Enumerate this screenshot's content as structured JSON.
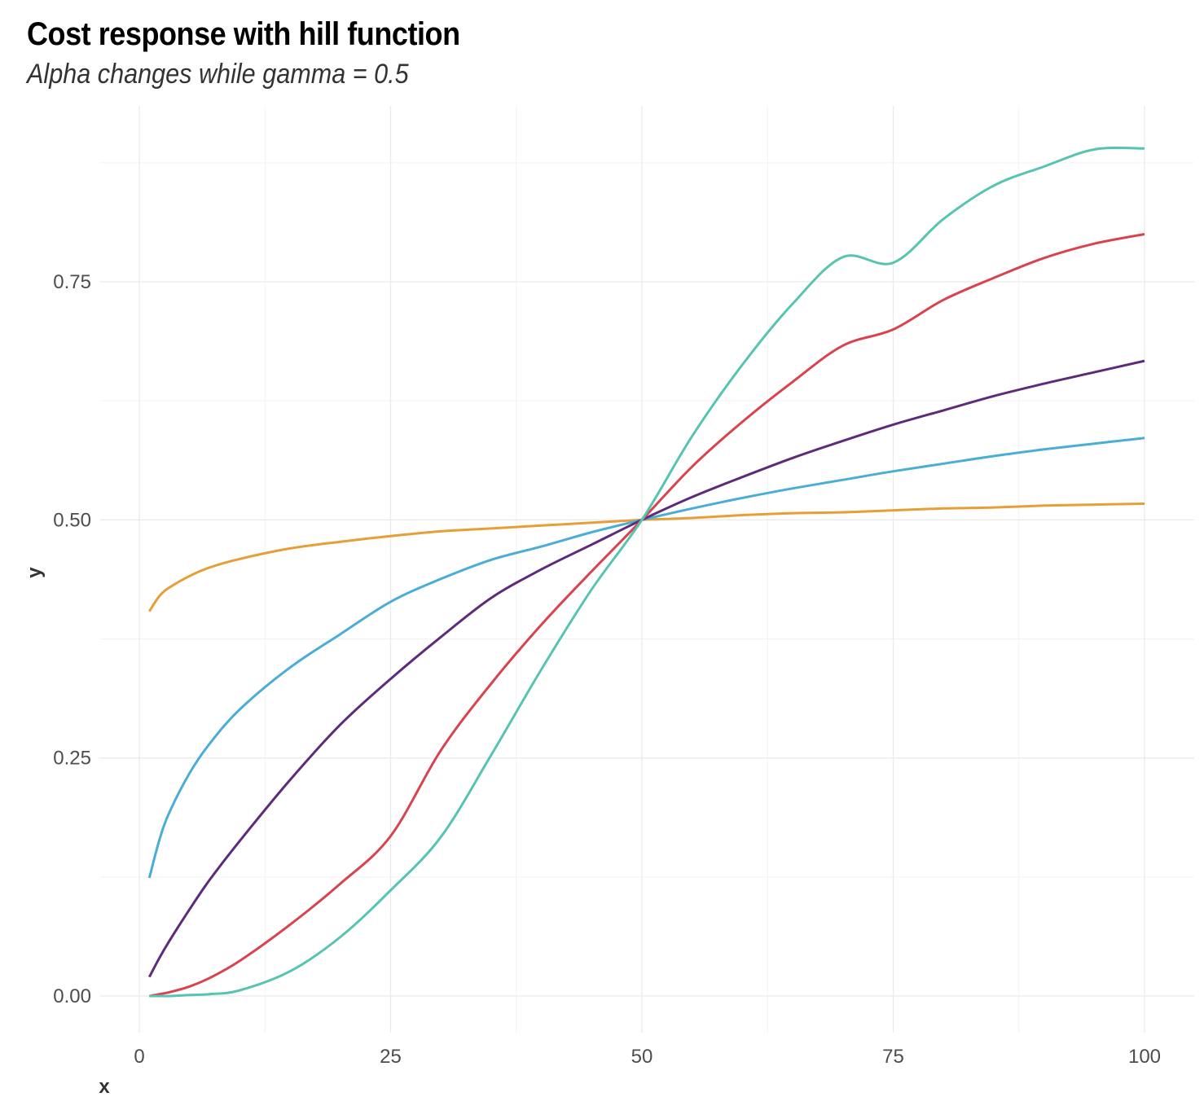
{
  "chart_data": {
    "type": "line",
    "title": "Cost response with hill function",
    "subtitle": "Alpha changes while gamma = 0.5",
    "xlabel": "x",
    "ylabel": "y",
    "xlim": [
      -3,
      104
    ],
    "ylim": [
      -0.04,
      0.93
    ],
    "x_ticks": [
      0,
      25,
      50,
      75,
      100
    ],
    "x_tick_labels": [
      "0",
      "25",
      "50",
      "75",
      "100"
    ],
    "y_ticks": [
      0,
      0.25,
      0.5,
      0.75
    ],
    "y_tick_labels": [
      "0.00",
      "0.25",
      "0.50",
      "0.75"
    ],
    "grid": true,
    "legend": "none",
    "x": [
      1,
      2,
      3,
      5,
      7,
      10,
      15,
      20,
      25,
      30,
      35,
      40,
      45,
      50,
      55,
      60,
      65,
      70,
      75,
      80,
      85,
      90,
      95,
      100
    ],
    "series": [
      {
        "color": "#E69F36",
        "values": [
          0.404,
          0.42,
          0.429,
          0.441,
          0.45,
          0.459,
          0.47,
          0.477,
          0.483,
          0.488,
          0.491,
          0.494,
          0.497,
          0.5,
          0.502,
          0.505,
          0.507,
          0.508,
          0.51,
          0.512,
          0.513,
          0.515,
          0.516,
          0.517
        ]
      },
      {
        "color": "#4AADD6",
        "values": [
          0.124,
          0.164,
          0.193,
          0.234,
          0.265,
          0.301,
          0.345,
          0.38,
          0.414,
          0.438,
          0.458,
          0.472,
          0.487,
          0.5,
          0.512,
          0.523,
          0.533,
          0.542,
          0.551,
          0.559,
          0.567,
          0.574,
          0.58,
          0.586
        ]
      },
      {
        "color": "#5E2A7A",
        "values": [
          0.02,
          0.04,
          0.058,
          0.091,
          0.122,
          0.163,
          0.227,
          0.285,
          0.333,
          0.377,
          0.418,
          0.448,
          0.474,
          0.5,
          0.524,
          0.545,
          0.565,
          0.583,
          0.6,
          0.615,
          0.63,
          0.643,
          0.655,
          0.667
        ]
      },
      {
        "color": "#D8434E",
        "values": [
          0.0,
          0.002,
          0.004,
          0.01,
          0.019,
          0.037,
          0.075,
          0.118,
          0.168,
          0.258,
          0.328,
          0.39,
          0.446,
          0.5,
          0.556,
          0.603,
          0.645,
          0.683,
          0.7,
          0.731,
          0.754,
          0.775,
          0.79,
          0.8
        ]
      },
      {
        "color": "#56C4B0",
        "values": [
          0.0,
          0.0,
          0.0,
          0.001,
          0.002,
          0.006,
          0.026,
          0.062,
          0.111,
          0.167,
          0.253,
          0.343,
          0.427,
          0.5,
          0.588,
          0.663,
          0.727,
          0.776,
          0.77,
          0.816,
          0.851,
          0.871,
          0.889,
          0.89
        ]
      }
    ]
  }
}
